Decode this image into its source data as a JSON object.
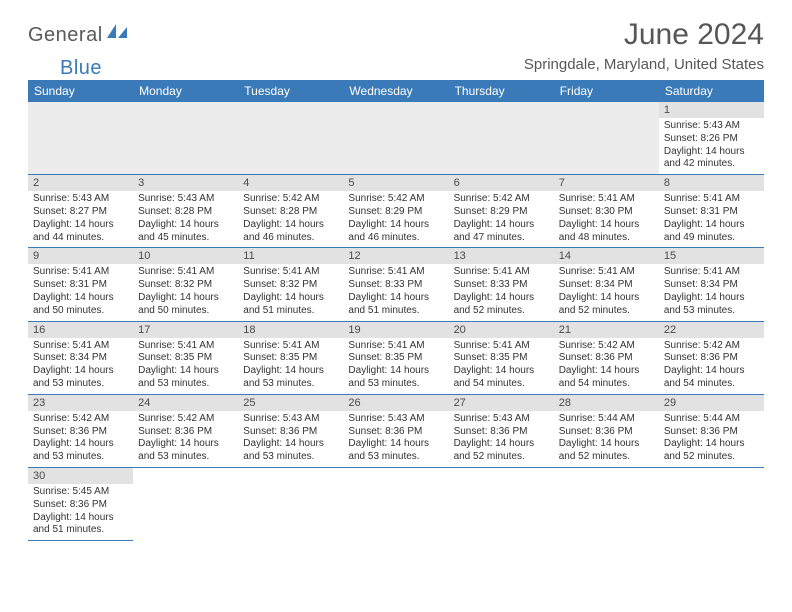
{
  "logo": {
    "part1": "General",
    "part2": "Blue"
  },
  "title": "June 2024",
  "location": "Springdale, Maryland, United States",
  "colors": {
    "accent": "#3a7ab8",
    "header_text": "#575757",
    "daynum_bg": "#e2e2e2",
    "empty_bg": "#ececec",
    "row_border": "#3a7ab8",
    "body_text": "#333333"
  },
  "weekdays": [
    "Sunday",
    "Monday",
    "Tuesday",
    "Wednesday",
    "Thursday",
    "Friday",
    "Saturday"
  ],
  "startOffset": 6,
  "days": [
    {
      "n": 1,
      "sunrise": "5:43 AM",
      "sunset": "8:26 PM",
      "dlh": 14,
      "dlm": 42
    },
    {
      "n": 2,
      "sunrise": "5:43 AM",
      "sunset": "8:27 PM",
      "dlh": 14,
      "dlm": 44
    },
    {
      "n": 3,
      "sunrise": "5:43 AM",
      "sunset": "8:28 PM",
      "dlh": 14,
      "dlm": 45
    },
    {
      "n": 4,
      "sunrise": "5:42 AM",
      "sunset": "8:28 PM",
      "dlh": 14,
      "dlm": 46
    },
    {
      "n": 5,
      "sunrise": "5:42 AM",
      "sunset": "8:29 PM",
      "dlh": 14,
      "dlm": 46
    },
    {
      "n": 6,
      "sunrise": "5:42 AM",
      "sunset": "8:29 PM",
      "dlh": 14,
      "dlm": 47
    },
    {
      "n": 7,
      "sunrise": "5:41 AM",
      "sunset": "8:30 PM",
      "dlh": 14,
      "dlm": 48
    },
    {
      "n": 8,
      "sunrise": "5:41 AM",
      "sunset": "8:31 PM",
      "dlh": 14,
      "dlm": 49
    },
    {
      "n": 9,
      "sunrise": "5:41 AM",
      "sunset": "8:31 PM",
      "dlh": 14,
      "dlm": 50
    },
    {
      "n": 10,
      "sunrise": "5:41 AM",
      "sunset": "8:32 PM",
      "dlh": 14,
      "dlm": 50
    },
    {
      "n": 11,
      "sunrise": "5:41 AM",
      "sunset": "8:32 PM",
      "dlh": 14,
      "dlm": 51
    },
    {
      "n": 12,
      "sunrise": "5:41 AM",
      "sunset": "8:33 PM",
      "dlh": 14,
      "dlm": 51
    },
    {
      "n": 13,
      "sunrise": "5:41 AM",
      "sunset": "8:33 PM",
      "dlh": 14,
      "dlm": 52
    },
    {
      "n": 14,
      "sunrise": "5:41 AM",
      "sunset": "8:34 PM",
      "dlh": 14,
      "dlm": 52
    },
    {
      "n": 15,
      "sunrise": "5:41 AM",
      "sunset": "8:34 PM",
      "dlh": 14,
      "dlm": 53
    },
    {
      "n": 16,
      "sunrise": "5:41 AM",
      "sunset": "8:34 PM",
      "dlh": 14,
      "dlm": 53
    },
    {
      "n": 17,
      "sunrise": "5:41 AM",
      "sunset": "8:35 PM",
      "dlh": 14,
      "dlm": 53
    },
    {
      "n": 18,
      "sunrise": "5:41 AM",
      "sunset": "8:35 PM",
      "dlh": 14,
      "dlm": 53
    },
    {
      "n": 19,
      "sunrise": "5:41 AM",
      "sunset": "8:35 PM",
      "dlh": 14,
      "dlm": 53
    },
    {
      "n": 20,
      "sunrise": "5:41 AM",
      "sunset": "8:35 PM",
      "dlh": 14,
      "dlm": 54
    },
    {
      "n": 21,
      "sunrise": "5:42 AM",
      "sunset": "8:36 PM",
      "dlh": 14,
      "dlm": 54
    },
    {
      "n": 22,
      "sunrise": "5:42 AM",
      "sunset": "8:36 PM",
      "dlh": 14,
      "dlm": 54
    },
    {
      "n": 23,
      "sunrise": "5:42 AM",
      "sunset": "8:36 PM",
      "dlh": 14,
      "dlm": 53
    },
    {
      "n": 24,
      "sunrise": "5:42 AM",
      "sunset": "8:36 PM",
      "dlh": 14,
      "dlm": 53
    },
    {
      "n": 25,
      "sunrise": "5:43 AM",
      "sunset": "8:36 PM",
      "dlh": 14,
      "dlm": 53
    },
    {
      "n": 26,
      "sunrise": "5:43 AM",
      "sunset": "8:36 PM",
      "dlh": 14,
      "dlm": 53
    },
    {
      "n": 27,
      "sunrise": "5:43 AM",
      "sunset": "8:36 PM",
      "dlh": 14,
      "dlm": 52
    },
    {
      "n": 28,
      "sunrise": "5:44 AM",
      "sunset": "8:36 PM",
      "dlh": 14,
      "dlm": 52
    },
    {
      "n": 29,
      "sunrise": "5:44 AM",
      "sunset": "8:36 PM",
      "dlh": 14,
      "dlm": 52
    },
    {
      "n": 30,
      "sunrise": "5:45 AM",
      "sunset": "8:36 PM",
      "dlh": 14,
      "dlm": 51
    }
  ],
  "labels": {
    "sunrise": "Sunrise:",
    "sunset": "Sunset:",
    "daylightPrefix": "Daylight:",
    "hoursWord": "hours",
    "andWord": "and",
    "minutesWord": "minutes."
  }
}
